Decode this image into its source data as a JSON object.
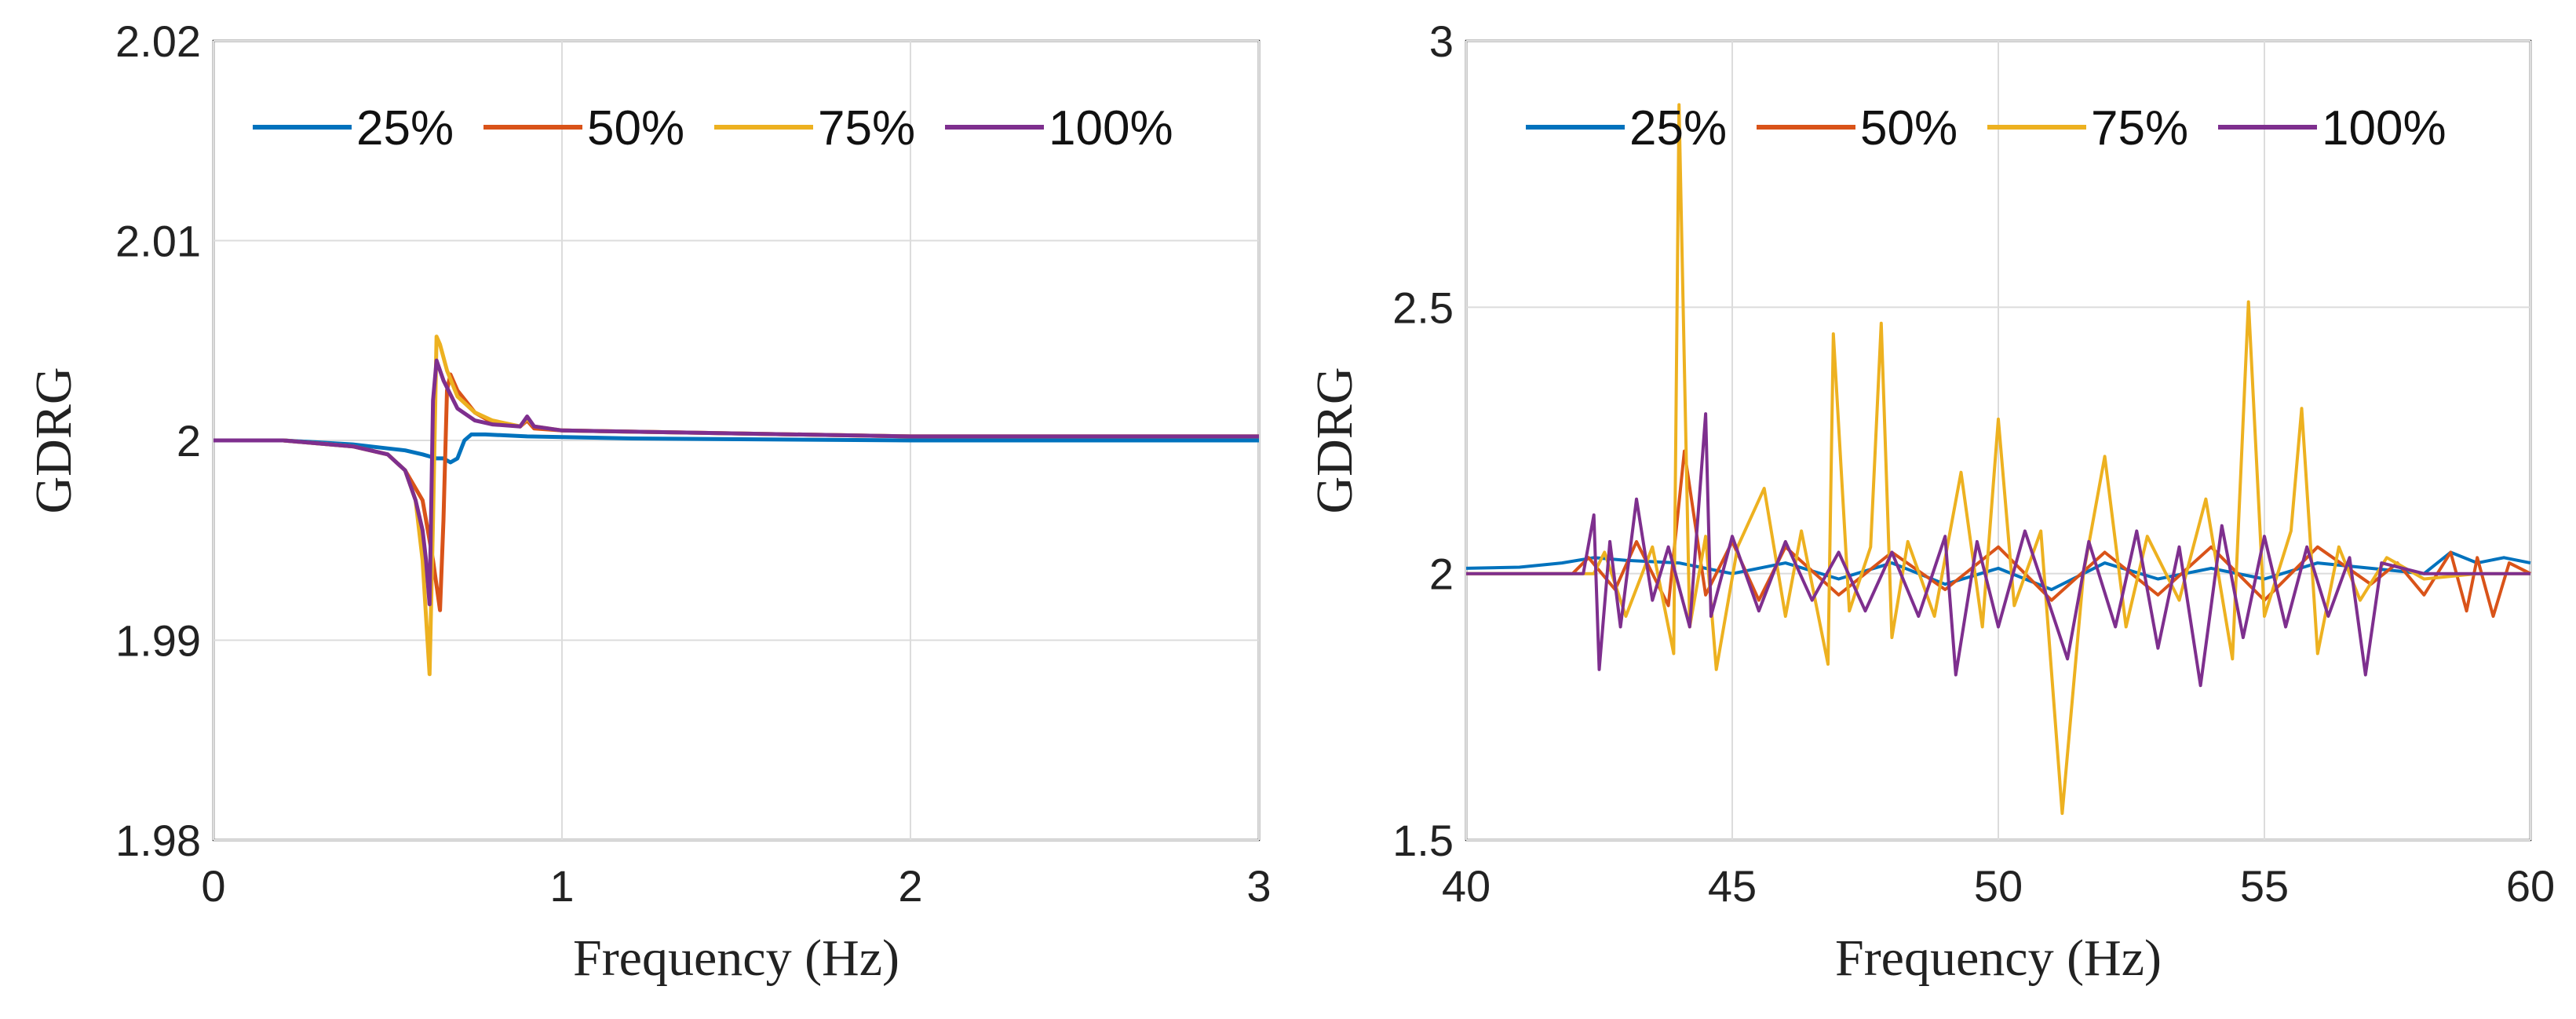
{
  "chart_data": [
    {
      "type": "line",
      "title": "",
      "xlabel": "Frequency (Hz)",
      "ylabel": "GDRG",
      "xlim": [
        0,
        3
      ],
      "ylim": [
        1.98,
        2.02
      ],
      "xticks": [
        "0",
        "1",
        "2",
        "3"
      ],
      "yticks": [
        "1.98",
        "1.99",
        "2",
        "2.01",
        "2.02"
      ],
      "grid": true,
      "legend_position": "top",
      "series": [
        {
          "name": "25%",
          "color": "#0072BD",
          "x": [
            0,
            0.2,
            0.4,
            0.5,
            0.55,
            0.6,
            0.62,
            0.64,
            0.66,
            0.68,
            0.7,
            0.72,
            0.74,
            0.78,
            0.9,
            1.2,
            2.0,
            3.0
          ],
          "y": [
            2.0,
            2.0,
            1.9998,
            1.9996,
            1.9995,
            1.9993,
            1.9992,
            1.9991,
            1.9991,
            1.9989,
            1.9991,
            2.0,
            2.0003,
            2.0003,
            2.0002,
            2.0001,
            2.0,
            2.0
          ]
        },
        {
          "name": "50%",
          "color": "#D95319",
          "x": [
            0,
            0.2,
            0.4,
            0.5,
            0.55,
            0.6,
            0.63,
            0.65,
            0.66,
            0.67,
            0.68,
            0.7,
            0.75,
            0.8,
            0.88,
            0.9,
            0.92,
            1.0,
            2.0,
            3.0
          ],
          "y": [
            2.0,
            2.0,
            1.9997,
            1.9993,
            1.9985,
            1.997,
            1.994,
            1.9915,
            1.996,
            2.0025,
            2.0033,
            2.0025,
            2.0014,
            2.0009,
            2.0007,
            2.001,
            2.0006,
            2.0005,
            2.0002,
            2.0002
          ]
        },
        {
          "name": "75%",
          "color": "#EDB120",
          "x": [
            0,
            0.2,
            0.4,
            0.5,
            0.55,
            0.58,
            0.6,
            0.62,
            0.63,
            0.64,
            0.65,
            0.67,
            0.7,
            0.75,
            0.8,
            0.88,
            0.9,
            0.92,
            1.0,
            2.0,
            3.0
          ],
          "y": [
            2.0,
            2.0,
            1.9997,
            1.9993,
            1.9985,
            1.997,
            1.994,
            1.9883,
            1.996,
            2.0052,
            2.0048,
            2.0035,
            2.0022,
            2.0014,
            2.001,
            2.0007,
            2.0011,
            2.0007,
            2.0005,
            2.0002,
            2.0002
          ]
        },
        {
          "name": "100%",
          "color": "#7E2F8E",
          "x": [
            0,
            0.2,
            0.4,
            0.5,
            0.55,
            0.58,
            0.6,
            0.61,
            0.62,
            0.63,
            0.64,
            0.66,
            0.7,
            0.75,
            0.8,
            0.88,
            0.9,
            0.92,
            1.0,
            2.0,
            3.0
          ],
          "y": [
            2.0,
            2.0,
            1.9997,
            1.9993,
            1.9985,
            1.997,
            1.9955,
            1.994,
            1.9918,
            2.002,
            2.004,
            2.003,
            2.0016,
            2.001,
            2.0008,
            2.0007,
            2.0012,
            2.0007,
            2.0005,
            2.0002,
            2.0002
          ]
        }
      ]
    },
    {
      "type": "line",
      "title": "",
      "xlabel": "Frequency (Hz)",
      "ylabel": "GDRG",
      "xlim": [
        40,
        60
      ],
      "ylim": [
        1.5,
        3
      ],
      "xticks": [
        "40",
        "45",
        "50",
        "55",
        "60"
      ],
      "yticks": [
        "1.5",
        "2",
        "2.5",
        "3"
      ],
      "grid": true,
      "legend_position": "top",
      "series": [
        {
          "name": "25%",
          "color": "#0072BD",
          "x": [
            40,
            41,
            41.8,
            42.4,
            43,
            44,
            45,
            46,
            47,
            48,
            49,
            50,
            51,
            52,
            53,
            54,
            55,
            56,
            57,
            58,
            58.5,
            59,
            59.5,
            60
          ],
          "y": [
            2.01,
            2.012,
            2.02,
            2.03,
            2.025,
            2.02,
            2.0,
            2.02,
            1.99,
            2.02,
            1.98,
            2.01,
            1.97,
            2.02,
            1.99,
            2.01,
            1.99,
            2.02,
            2.01,
            2.0,
            2.04,
            2.02,
            2.03,
            2.02
          ]
        },
        {
          "name": "50%",
          "color": "#D95319",
          "x": [
            40,
            41,
            42,
            42.3,
            42.8,
            43.2,
            43.8,
            44.1,
            44.5,
            45,
            45.5,
            46,
            47,
            48,
            49,
            50,
            51,
            52,
            53,
            54,
            55,
            56,
            57,
            57.5,
            58,
            58.5,
            58.8,
            59,
            59.3,
            59.6,
            60
          ],
          "y": [
            2.0,
            2.0,
            2.0,
            2.03,
            1.97,
            2.06,
            1.94,
            2.23,
            1.96,
            2.06,
            1.95,
            2.05,
            1.96,
            2.04,
            1.97,
            2.05,
            1.95,
            2.04,
            1.96,
            2.05,
            1.95,
            2.05,
            1.98,
            2.02,
            1.96,
            2.04,
            1.93,
            2.03,
            1.92,
            2.02,
            2.0
          ]
        },
        {
          "name": "75%",
          "color": "#EDB120",
          "x": [
            40,
            41.5,
            42.4,
            42.6,
            43.0,
            43.5,
            43.9,
            44.0,
            44.2,
            44.5,
            44.7,
            45.1,
            45.6,
            46.0,
            46.3,
            46.8,
            46.9,
            47.2,
            47.6,
            47.8,
            48.0,
            48.3,
            48.8,
            49.3,
            49.7,
            50.0,
            50.3,
            50.8,
            51.2,
            51.6,
            52.0,
            52.4,
            52.8,
            53.4,
            53.9,
            54.4,
            54.7,
            55.0,
            55.5,
            55.7,
            56.0,
            56.4,
            56.8,
            57.3,
            58.0,
            59.0,
            60.0
          ],
          "y": [
            2.0,
            2.0,
            2.0,
            2.04,
            1.92,
            2.05,
            1.85,
            2.88,
            1.9,
            2.07,
            1.82,
            2.05,
            2.16,
            1.92,
            2.08,
            1.83,
            2.45,
            1.93,
            2.05,
            2.47,
            1.88,
            2.06,
            1.92,
            2.19,
            1.9,
            2.29,
            1.94,
            2.08,
            1.55,
            2.0,
            2.22,
            1.9,
            2.07,
            1.95,
            2.14,
            1.84,
            2.51,
            1.92,
            2.08,
            2.31,
            1.85,
            2.05,
            1.95,
            2.03,
            1.99,
            2.0,
            2.0
          ]
        },
        {
          "name": "100%",
          "color": "#7E2F8E",
          "x": [
            40,
            41.5,
            42.2,
            42.4,
            42.5,
            42.7,
            42.9,
            43.2,
            43.5,
            43.8,
            44.2,
            44.5,
            44.6,
            45.0,
            45.5,
            46.0,
            46.5,
            47.0,
            47.5,
            48.0,
            48.5,
            49.0,
            49.2,
            49.6,
            50.0,
            50.5,
            51.0,
            51.3,
            51.7,
            52.2,
            52.6,
            53.0,
            53.4,
            53.8,
            54.2,
            54.6,
            55.0,
            55.4,
            55.8,
            56.2,
            56.6,
            56.9,
            57.2,
            58.0,
            59.0,
            60.0
          ],
          "y": [
            2.0,
            2.0,
            2.0,
            2.11,
            1.82,
            2.06,
            1.9,
            2.14,
            1.95,
            2.05,
            1.9,
            2.3,
            1.92,
            2.07,
            1.93,
            2.06,
            1.95,
            2.04,
            1.93,
            2.04,
            1.92,
            2.07,
            1.81,
            2.06,
            1.9,
            2.08,
            1.93,
            1.84,
            2.06,
            1.9,
            2.08,
            1.86,
            2.05,
            1.79,
            2.09,
            1.88,
            2.07,
            1.9,
            2.05,
            1.92,
            2.03,
            1.81,
            2.02,
            2.0,
            2.0,
            2.0
          ]
        }
      ]
    }
  ]
}
